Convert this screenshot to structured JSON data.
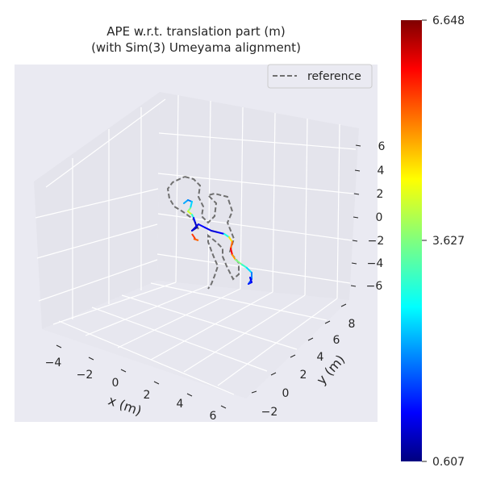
{
  "chart_data": {
    "type": "line",
    "title_line1": "APE w.r.t. translation part (m)",
    "title_line2": "(with Sim(3) Umeyama alignment)",
    "xlabel": "x (m)",
    "ylabel": "y (m)",
    "x_ticks": [
      "−4",
      "−2",
      "0",
      "2",
      "4",
      "6"
    ],
    "y_ticks": [
      "−2",
      "0",
      "2",
      "4",
      "6",
      "8"
    ],
    "z_ticks": [
      "6",
      "4",
      "2",
      "0",
      "−2",
      "−4",
      "−6"
    ],
    "legend": {
      "placement": "top-right",
      "entries": [
        "reference"
      ]
    },
    "colorbar": {
      "colormap": "jet",
      "min": 0.607,
      "max": 6.648,
      "tick_labels": [
        "6.648",
        "3.627",
        "0.607"
      ],
      "tick_values": [
        6.648,
        3.627,
        0.607
      ]
    },
    "series": [
      {
        "name": "reference",
        "style": "dashed",
        "color": "#707070"
      }
    ],
    "grid": true,
    "background": "#eaeaf2"
  }
}
